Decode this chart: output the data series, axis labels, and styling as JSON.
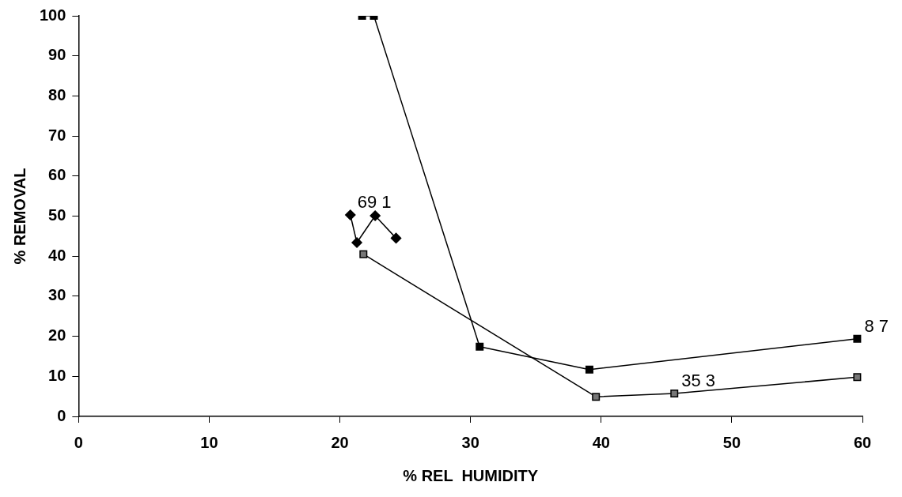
{
  "chart_data": {
    "type": "line",
    "xlabel": "% REL  HUMIDITY",
    "ylabel": "% REMOVAL",
    "xlim": [
      0,
      60
    ],
    "xticks": [
      0,
      10,
      20,
      30,
      40,
      50,
      60
    ],
    "ylim": [
      0,
      100
    ],
    "yticks": [
      0,
      10,
      20,
      30,
      40,
      50,
      60,
      70,
      80,
      90,
      100
    ],
    "grid": false,
    "legend": false,
    "line_style": "solid",
    "series": [
      {
        "color": "#000000",
        "marker": "square",
        "x": [
          21.7,
          22.6,
          30.7,
          39.1,
          59.6
        ],
        "values": [
          100,
          100,
          17.4,
          11.7,
          19.4
        ]
      },
      {
        "color": "#777777",
        "marker": "square",
        "x": [
          21.8,
          39.6,
          45.6,
          59.6
        ],
        "values": [
          40.5,
          4.9,
          5.7,
          9.8
        ]
      },
      {
        "color": "#000000",
        "marker": "diamond",
        "x": [
          20.8,
          21.3,
          22.7,
          24.3
        ],
        "values": [
          50.3,
          43.4,
          50.1,
          44.5
        ]
      }
    ],
    "annotations": [
      {
        "text": "69 1",
        "x": 20.8,
        "y": 50.3
      },
      {
        "text": "35 3",
        "x": 45.6,
        "y": 5.7
      },
      {
        "text": "8 7",
        "x": 59.6,
        "y": 19.4
      }
    ]
  }
}
